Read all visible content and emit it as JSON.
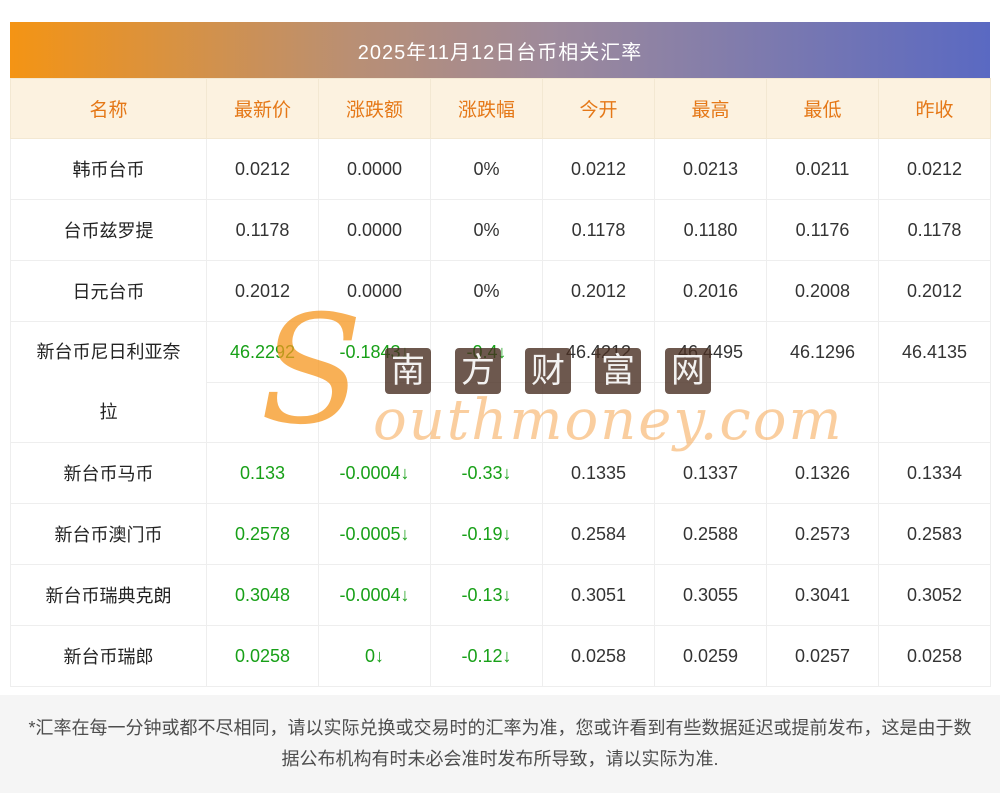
{
  "title": "2025年11月12日台币相关汇率",
  "table": {
    "columns": [
      "名称",
      "最新价",
      "涨跌额",
      "涨跌幅",
      "今开",
      "最高",
      "最低",
      "昨收"
    ],
    "trend_value_columns": 3,
    "rows": [
      {
        "name": "韩币台币",
        "values": [
          "0.0212",
          "0.0000",
          "0%",
          "0.0212",
          "0.0213",
          "0.0211",
          "0.0212"
        ],
        "trend": "flat",
        "two_line": false
      },
      {
        "name": "台币兹罗提",
        "values": [
          "0.1178",
          "0.0000",
          "0%",
          "0.1178",
          "0.1180",
          "0.1176",
          "0.1178"
        ],
        "trend": "flat",
        "two_line": false
      },
      {
        "name": "日元台币",
        "values": [
          "0.2012",
          "0.0000",
          "0%",
          "0.2012",
          "0.2016",
          "0.2008",
          "0.2012"
        ],
        "trend": "flat",
        "two_line": false
      },
      {
        "name": "新台币尼日利亚奈拉",
        "values": [
          "46.2292",
          "-0.1843↓",
          "-0.4↓",
          "46.4212",
          "46.4495",
          "46.1296",
          "46.4135"
        ],
        "trend": "down",
        "two_line": true
      },
      {
        "name": "新台币马币",
        "values": [
          "0.133",
          "-0.0004↓",
          "-0.33↓",
          "0.1335",
          "0.1337",
          "0.1326",
          "0.1334"
        ],
        "trend": "down",
        "two_line": false
      },
      {
        "name": "新台币澳门币",
        "values": [
          "0.2578",
          "-0.0005↓",
          "-0.19↓",
          "0.2584",
          "0.2588",
          "0.2573",
          "0.2583"
        ],
        "trend": "down",
        "two_line": false
      },
      {
        "name": "新台币瑞典克朗",
        "values": [
          "0.3048",
          "-0.0004↓",
          "-0.13↓",
          "0.3051",
          "0.3055",
          "0.3041",
          "0.3052"
        ],
        "trend": "down",
        "two_line": false
      },
      {
        "name": "新台币瑞郎",
        "values": [
          "0.0258",
          "0↓",
          "-0.12↓",
          "0.0258",
          "0.0259",
          "0.0257",
          "0.0258"
        ],
        "trend": "down",
        "two_line": false
      }
    ]
  },
  "watermark": {
    "initial": "S",
    "brand": "outhmoney.com",
    "logo_chars": [
      "南",
      "方",
      "财",
      "富",
      "网"
    ]
  },
  "footnote": "*汇率在每一分钟或都不尽相同，请以实际兑换或交易时的汇率为准，您或许看到有些数据延迟或提前发布，这是由于数据公布机构有时未必会准时发布所导致，请以实际为准.",
  "colors": {
    "title_gradient_start": "#f49414",
    "title_gradient_end": "#5a69c2",
    "header_bg": "#fcf2e0",
    "header_text": "#e57817",
    "down_green": "#18a018",
    "footnote_bg": "#f5f5f5"
  }
}
